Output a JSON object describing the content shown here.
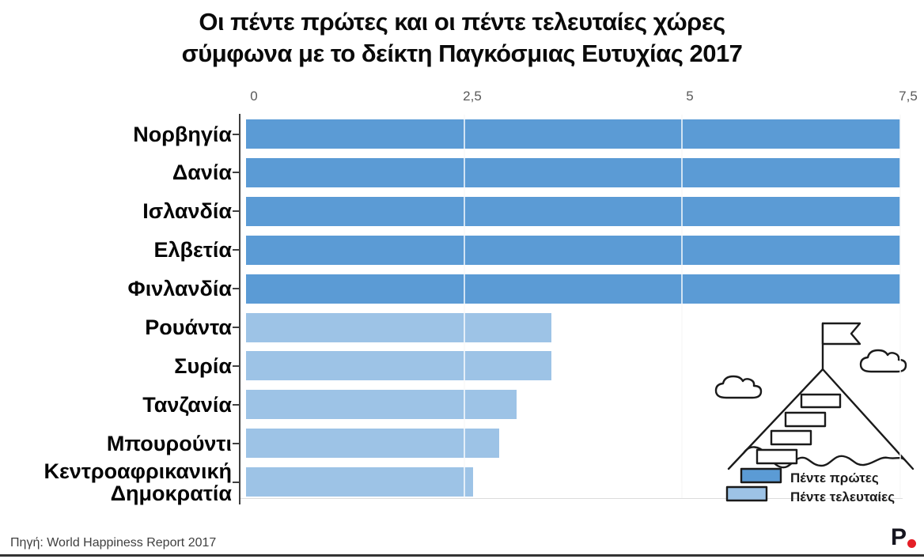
{
  "title": {
    "line1": "Οι πέντε πρώτες και οι πέντε τελευταίες χώρες",
    "line2": "σύμφωνα με το δείκτη Παγκόσμιας Ευτυχίας 2017"
  },
  "chart_data": {
    "type": "bar",
    "orientation": "horizontal",
    "title": "Οι πέντε πρώτες και οι πέντε τελευταίες χώρες σύμφωνα με το δείκτη Παγκόσμιας Ευτυχίας 2017",
    "categories": [
      "Νορβηγία",
      "Δανία",
      "Ισλανδία",
      "Ελβετία",
      "Φινλανδία",
      "Ρουάντα",
      "Συρία",
      "Τανζανία",
      "Μπουρούντι",
      "Κεντροαφρικανική Δημοκρατία"
    ],
    "values": [
      7.5,
      7.5,
      7.5,
      7.5,
      7.5,
      3.5,
      3.5,
      3.1,
      2.9,
      2.6
    ],
    "groups": [
      "first",
      "first",
      "first",
      "first",
      "first",
      "last",
      "last",
      "last",
      "last",
      "last"
    ],
    "group_colors": {
      "first": "#5b9bd5",
      "last": "#9dc3e6"
    },
    "xlim": [
      0,
      7.5
    ],
    "x_ticks": [
      {
        "label": "0",
        "value": 0
      },
      {
        "label": "2,5",
        "value": 2.5
      },
      {
        "label": "5",
        "value": 5
      },
      {
        "label": "7,5",
        "value": 7.5
      }
    ],
    "grid": true,
    "legend": [
      {
        "label": "Πέντε πρώτες",
        "color": "#5b9bd5"
      },
      {
        "label": "Πέντε τελευταίες",
        "color": "#9dc3e6"
      }
    ],
    "legend_position": "bottom-right"
  },
  "footer": {
    "source": "Πηγή: World Happiness Report 2017",
    "logo_text": "P",
    "logo_dot_color": "#e41e26"
  },
  "colors": {
    "bar_first": "#5b9bd5",
    "bar_last": "#9dc3e6",
    "axis": "#3f3f3f",
    "tick_label": "#595959"
  }
}
